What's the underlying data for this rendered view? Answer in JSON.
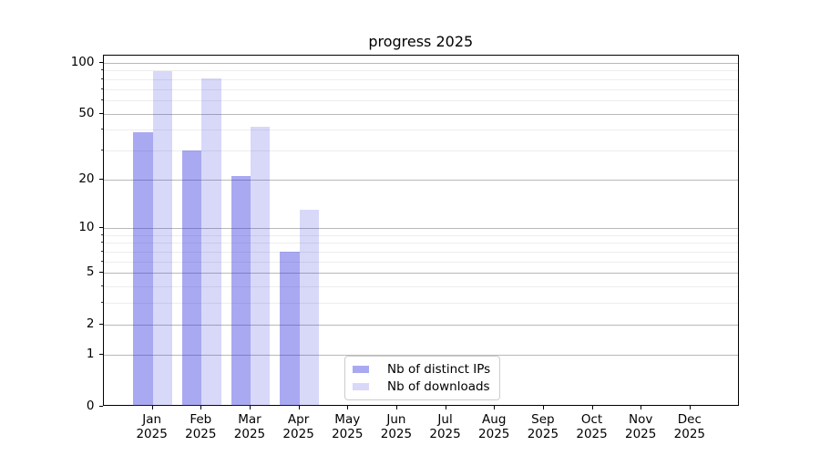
{
  "chart_data": {
    "type": "bar",
    "title": "progress 2025",
    "categories": [
      "Jan",
      "Feb",
      "Mar",
      "Apr",
      "May",
      "Jun",
      "Jul",
      "Aug",
      "Sep",
      "Oct",
      "Nov",
      "Dec"
    ],
    "x_sub_label": "2025",
    "series": [
      {
        "name": "Nb of distinct IPs",
        "values": [
          39,
          30,
          21,
          7,
          0,
          0,
          0,
          0,
          0,
          0,
          0,
          0
        ],
        "color": "#a9a9f1",
        "fill": "rgba(40,40,220,0.40)"
      },
      {
        "name": "Nb of downloads",
        "values": [
          89,
          81,
          42,
          13,
          0,
          0,
          0,
          0,
          0,
          0,
          0,
          0
        ],
        "color": "#d8d8f9",
        "fill": "rgba(40,40,220,0.18)"
      }
    ],
    "yscale": "log1p",
    "ylim": [
      0,
      111
    ],
    "yticks": [
      0,
      1,
      2,
      5,
      10,
      20,
      50,
      100
    ],
    "yticks_minor": [
      3,
      4,
      6,
      7,
      8,
      9,
      30,
      40,
      60,
      70,
      80,
      90
    ],
    "grid": "horizontal-major-and-minor",
    "legend_position": "lower-center-inside"
  }
}
